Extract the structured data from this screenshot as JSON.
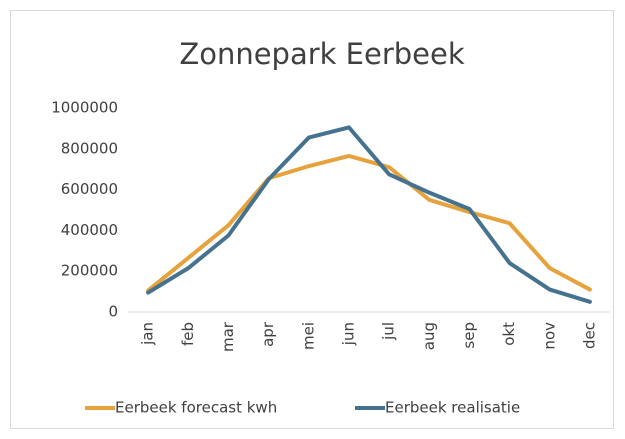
{
  "chart_data": {
    "type": "line",
    "title": "Zonnepark Eerbeek",
    "categories": [
      "jan",
      "feb",
      "mar",
      "apr",
      "mei",
      "jun",
      "jul",
      "aug",
      "sep",
      "okt",
      "nov",
      "dec"
    ],
    "series": [
      {
        "name": "Eerbeek forecast kwh",
        "color": "#e6a23c",
        "values": [
          105000,
          265000,
          425000,
          655000,
          715000,
          765000,
          710000,
          550000,
          490000,
          435000,
          215000,
          110000
        ]
      },
      {
        "name": "Eerbeek realisatie",
        "color": "#45738f",
        "values": [
          95000,
          215000,
          375000,
          650000,
          855000,
          905000,
          675000,
          585000,
          505000,
          240000,
          110000,
          50000
        ]
      }
    ],
    "ylim": [
      0,
      1000000
    ],
    "yticks": [
      0,
      200000,
      400000,
      600000,
      800000,
      1000000
    ],
    "grid": false,
    "legend": "bottom"
  }
}
